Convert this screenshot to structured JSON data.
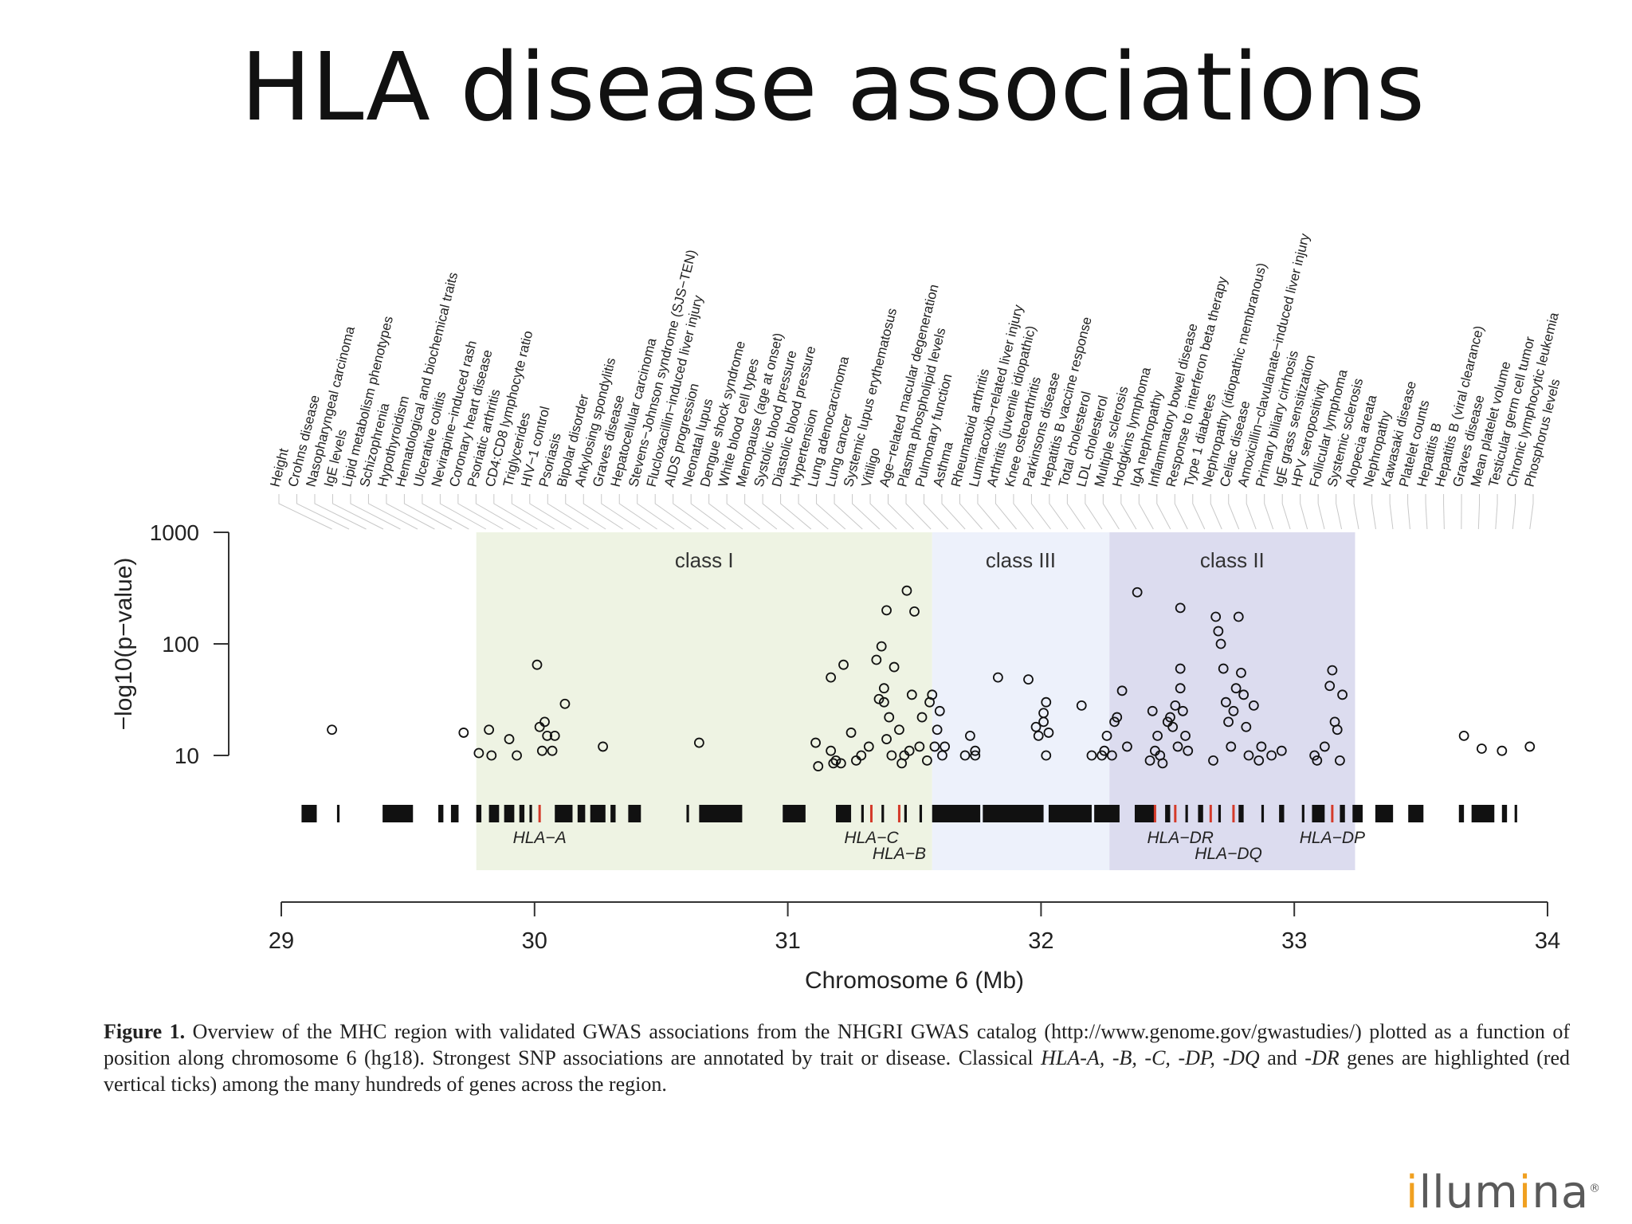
{
  "slide": {
    "title": "HLA disease associations",
    "logo": {
      "text": "illumina",
      "mark": "®",
      "accent": "#f0a020"
    }
  },
  "caption": {
    "label": "Figure 1.",
    "parts": [
      {
        "t": " Overview of the MHC region with validated GWAS associations from the NHGRI GWAS catalog (http://www.genome.gov/gwastudies/) plotted as a function of position along chromosome 6 (hg18). Strongest SNP associations are annotated by trait or disease. Classical ",
        "i": false
      },
      {
        "t": "HLA-A, -B, -C, -DP, -DQ",
        "i": true
      },
      {
        "t": " and ",
        "i": false
      },
      {
        "t": "-DR",
        "i": true
      },
      {
        "t": " genes are highlighted (red vertical ticks) among the many hundreds of genes across the region.",
        "i": false
      }
    ]
  },
  "chart_data": {
    "type": "scatter",
    "xlabel": "Chromosome 6 (Mb)",
    "ylabel": "−log10(p−value)",
    "xlim": [
      29,
      34
    ],
    "ylim": [
      7,
      1000
    ],
    "y_scale": "log",
    "x_ticks": [
      "29",
      "30",
      "31",
      "32",
      "33",
      "34"
    ],
    "x_tick_values": [
      29,
      30,
      31,
      32,
      33,
      34
    ],
    "y_ticks": [
      "1000",
      "100",
      "10"
    ],
    "y_tick_values": [
      1000,
      100,
      10
    ],
    "regions": [
      {
        "name": "class I",
        "start": 29.77,
        "end": 31.57,
        "color": "#eef3e3"
      },
      {
        "name": "class III",
        "start": 31.57,
        "end": 32.27,
        "color": "#edf1fb"
      },
      {
        "name": "class II",
        "start": 32.27,
        "end": 33.24,
        "color": "#dcdcef"
      }
    ],
    "hla_genes": [
      {
        "name": "HLA−A",
        "x": 30.02
      },
      {
        "name": "HLA−C",
        "x": 31.33
      },
      {
        "name": "HLA−B",
        "x": 31.44
      },
      {
        "name": "HLA−DR",
        "x": 32.55
      },
      {
        "name": "HLA−DQ",
        "x": 32.74
      },
      {
        "name": "HLA−DP",
        "x": 33.15
      }
    ],
    "red_ticks": [
      30.02,
      31.33,
      31.44,
      32.45,
      32.53,
      32.67,
      32.76,
      33.15
    ],
    "gene_blocks": [
      [
        29.08,
        29.14
      ],
      [
        29.22,
        29.23
      ],
      [
        29.4,
        29.52
      ],
      [
        29.62,
        29.64
      ],
      [
        29.67,
        29.7
      ],
      [
        29.77,
        29.79
      ],
      [
        29.82,
        29.86
      ],
      [
        29.88,
        29.92
      ],
      [
        29.94,
        29.96
      ],
      [
        29.98,
        29.99
      ],
      [
        30.08,
        30.15
      ],
      [
        30.17,
        30.2
      ],
      [
        30.22,
        30.28
      ],
      [
        30.3,
        30.32
      ],
      [
        30.37,
        30.42
      ],
      [
        30.6,
        30.61
      ],
      [
        30.65,
        30.82
      ],
      [
        30.98,
        31.07
      ],
      [
        31.19,
        31.25
      ],
      [
        31.29,
        31.3
      ],
      [
        31.37,
        31.38
      ],
      [
        31.46,
        31.47
      ],
      [
        31.52,
        31.53
      ],
      [
        31.57,
        31.76
      ],
      [
        31.77,
        32.01
      ],
      [
        32.03,
        32.2
      ],
      [
        32.21,
        32.31
      ],
      [
        32.37,
        32.45
      ],
      [
        32.49,
        32.51
      ],
      [
        32.57,
        32.58
      ],
      [
        32.62,
        32.64
      ],
      [
        32.7,
        32.71
      ],
      [
        32.78,
        32.8
      ],
      [
        32.87,
        32.88
      ],
      [
        32.94,
        32.96
      ],
      [
        33.03,
        33.04
      ],
      [
        33.07,
        33.12
      ],
      [
        33.18,
        33.2
      ],
      [
        33.23,
        33.27
      ],
      [
        33.32,
        33.39
      ],
      [
        33.45,
        33.51
      ],
      [
        33.65,
        33.67
      ],
      [
        33.7,
        33.79
      ],
      [
        33.82,
        33.84
      ],
      [
        33.87,
        33.88
      ]
    ],
    "traits": [
      "Height",
      "Crohns disease",
      "Nasopharyngeal carcinoma",
      "IgE levels",
      "Lipid metabolism phenotypes",
      "Schizophrenia",
      "Hypothyroidism",
      "Hematological and biochemical traits",
      "Ulcerative colitis",
      "Nevirapine−induced rash",
      "Coronary heart disease",
      "Psoriatic arthritis",
      "CD4:CD8 lymphocyte ratio",
      "Triglycerides",
      "HIV−1 control",
      "Psoriasis",
      "Bipolar disorder",
      "Ankylosing spondylitis",
      "Graves disease",
      "Hepatocellular carcinoma",
      "Stevens−Johnson syndrome (SJS−TEN)",
      "Flucloxacillin−induced liver injury",
      "AIDS progression",
      "Neonatal lupus",
      "Dengue shock syndrome",
      "White blood cell types",
      "Menopause (age at onset)",
      "Systolic blood pressure",
      "Diastolic blood pressure",
      "Hypertension",
      "Lung adenocarcinoma",
      "Lung cancer",
      "Systemic lupus erythematosus",
      "Vitiligo",
      "Age−related macular degeneration",
      "Plasma phospholipid levels",
      "Pulmonary function",
      "Asthma",
      "Rheumatoid arthritis",
      "Lumiracoxib−related liver injury",
      "Arthritis (juvenile idiopathic)",
      "Knee osteoarthritis",
      "Parkinsons disease",
      "Hepatitis B vaccine response",
      "Total cholesterol",
      "LDL cholesterol",
      "Multiple sclerosis",
      "Hodgkins lymphoma",
      "IgA nephropathy",
      "Inflammatory bowel disease",
      "Response to interferon beta therapy",
      "Type 1 diabetes",
      "Nephropathy (idiopathic membranous)",
      "Celiac disease",
      "Amoxicillin−clavulanate−induced liver injury",
      "Primary biliary cirrhosis",
      "IgE grass sensitization",
      "HPV seropositivity",
      "Follicular lymphoma",
      "Systemic sclerosis",
      "Alopecia areata",
      "Nephropathy",
      "Kawasaki disease",
      "Platelet counts",
      "Hepatitis B",
      "Hepatitis B (viral clearance)",
      "Graves disease",
      "Mean platelet volume",
      "Testicular germ cell tumor",
      "Chronic lymphocytic leukemia",
      "Phosphorus levels"
    ],
    "points": [
      [
        29.2,
        17
      ],
      [
        29.72,
        16
      ],
      [
        29.78,
        10.5
      ],
      [
        29.82,
        17
      ],
      [
        29.83,
        10
      ],
      [
        29.9,
        14
      ],
      [
        29.93,
        10
      ],
      [
        30.01,
        65
      ],
      [
        30.02,
        18
      ],
      [
        30.03,
        11
      ],
      [
        30.04,
        20
      ],
      [
        30.05,
        15
      ],
      [
        30.07,
        11
      ],
      [
        30.08,
        15
      ],
      [
        30.12,
        29
      ],
      [
        30.27,
        12
      ],
      [
        30.65,
        13
      ],
      [
        31.11,
        13
      ],
      [
        31.12,
        8
      ],
      [
        31.17,
        11
      ],
      [
        31.18,
        8.5
      ],
      [
        31.19,
        9
      ],
      [
        31.21,
        8.5
      ],
      [
        31.17,
        50
      ],
      [
        31.22,
        65
      ],
      [
        31.25,
        16
      ],
      [
        31.27,
        9
      ],
      [
        31.29,
        10
      ],
      [
        31.32,
        12
      ],
      [
        31.35,
        72
      ],
      [
        31.37,
        95
      ],
      [
        31.36,
        32
      ],
      [
        31.38,
        30
      ],
      [
        31.38,
        40
      ],
      [
        31.39,
        14
      ],
      [
        31.4,
        22
      ],
      [
        31.41,
        10
      ],
      [
        31.42,
        62
      ],
      [
        31.44,
        17
      ],
      [
        31.45,
        8.5
      ],
      [
        31.46,
        10
      ],
      [
        31.47,
        300
      ],
      [
        31.39,
        200
      ],
      [
        31.48,
        11
      ],
      [
        31.49,
        35
      ],
      [
        31.5,
        195
      ],
      [
        31.52,
        12
      ],
      [
        31.53,
        22
      ],
      [
        31.55,
        9
      ],
      [
        31.56,
        30
      ],
      [
        31.57,
        35
      ],
      [
        31.58,
        12
      ],
      [
        31.59,
        17
      ],
      [
        31.61,
        10
      ],
      [
        31.6,
        25
      ],
      [
        31.62,
        12
      ],
      [
        31.7,
        10
      ],
      [
        31.72,
        15
      ],
      [
        31.74,
        11
      ],
      [
        31.74,
        10
      ],
      [
        31.83,
        50
      ],
      [
        31.95,
        48
      ],
      [
        31.98,
        18
      ],
      [
        31.99,
        15
      ],
      [
        32.01,
        20
      ],
      [
        32.02,
        30
      ],
      [
        32.01,
        24
      ],
      [
        32.03,
        16
      ],
      [
        32.02,
        10
      ],
      [
        32.16,
        28
      ],
      [
        32.2,
        10
      ],
      [
        32.24,
        10
      ],
      [
        32.25,
        11
      ],
      [
        32.26,
        15
      ],
      [
        32.28,
        10
      ],
      [
        32.29,
        20
      ],
      [
        32.3,
        22
      ],
      [
        32.32,
        38
      ],
      [
        32.34,
        12
      ],
      [
        32.38,
        290
      ],
      [
        32.43,
        9
      ],
      [
        32.44,
        25
      ],
      [
        32.45,
        11
      ],
      [
        32.46,
        15
      ],
      [
        32.47,
        10
      ],
      [
        32.48,
        8.5
      ],
      [
        32.5,
        20
      ],
      [
        32.51,
        22
      ],
      [
        32.52,
        18
      ],
      [
        32.53,
        28
      ],
      [
        32.54,
        12
      ],
      [
        32.55,
        210
      ],
      [
        32.55,
        60
      ],
      [
        32.55,
        40
      ],
      [
        32.56,
        25
      ],
      [
        32.57,
        15
      ],
      [
        32.58,
        11
      ],
      [
        32.68,
        9
      ],
      [
        32.69,
        175
      ],
      [
        32.7,
        130
      ],
      [
        32.71,
        100
      ],
      [
        32.72,
        60
      ],
      [
        32.73,
        30
      ],
      [
        32.74,
        20
      ],
      [
        32.75,
        12
      ],
      [
        32.76,
        25
      ],
      [
        32.77,
        40
      ],
      [
        32.78,
        175
      ],
      [
        32.79,
        55
      ],
      [
        32.8,
        35
      ],
      [
        32.81,
        18
      ],
      [
        32.82,
        10
      ],
      [
        32.84,
        28
      ],
      [
        32.86,
        9
      ],
      [
        32.87,
        12
      ],
      [
        32.91,
        10
      ],
      [
        32.95,
        11
      ],
      [
        33.08,
        10
      ],
      [
        33.09,
        9
      ],
      [
        33.12,
        12
      ],
      [
        33.14,
        42
      ],
      [
        33.15,
        58
      ],
      [
        33.16,
        20
      ],
      [
        33.17,
        17
      ],
      [
        33.18,
        9
      ],
      [
        33.19,
        35
      ],
      [
        33.67,
        15
      ],
      [
        33.74,
        11.5
      ],
      [
        33.82,
        11
      ],
      [
        33.93,
        12
      ]
    ]
  }
}
